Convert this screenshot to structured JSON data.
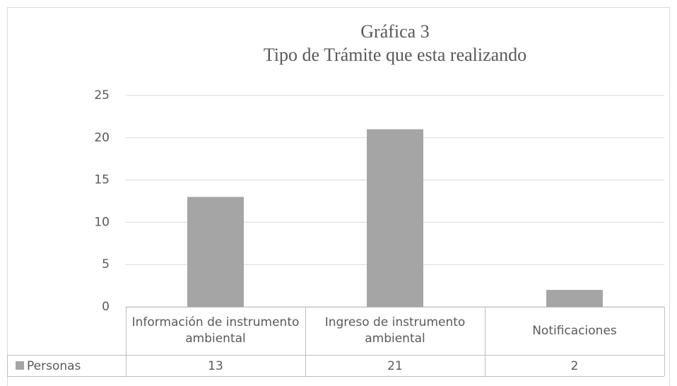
{
  "chart_data": {
    "type": "bar",
    "title": [
      "Gráfica 3",
      "Tipo de Trámite que esta realizando"
    ],
    "categories": [
      "Información de instrumento ambiental",
      "Ingreso de instrumento ambiental",
      "Notificaciones"
    ],
    "series": [
      {
        "name": "Personas",
        "color": "#a5a5a5",
        "values": [
          13,
          21,
          2
        ]
      }
    ],
    "ylim": [
      0,
      25
    ],
    "yticks": [
      0,
      5,
      10,
      15,
      20,
      25
    ],
    "grid": true,
    "data_table": true
  }
}
